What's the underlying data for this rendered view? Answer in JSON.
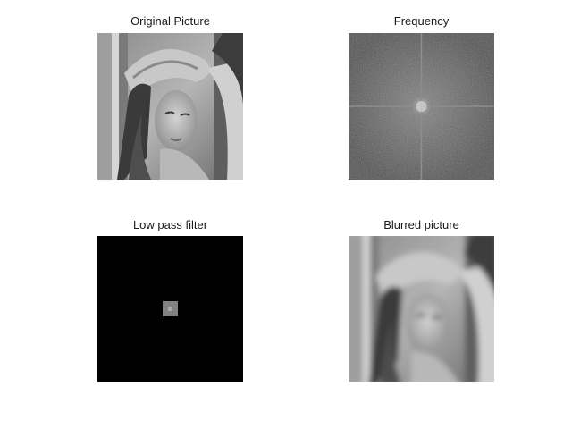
{
  "figure": {
    "panels": [
      {
        "title": "Original Picture",
        "content": "grayscale portrait photograph"
      },
      {
        "title": "Frequency",
        "content": "2D Fourier magnitude spectrum"
      },
      {
        "title": "Low pass filter",
        "content": "masked spectrum with small centered passband"
      },
      {
        "title": "Blurred picture",
        "content": "low-pass filtered portrait"
      }
    ]
  },
  "colors": {
    "background": "#ffffff",
    "spectrum_gray": "#5a5a5a",
    "mask_black": "#000000"
  }
}
